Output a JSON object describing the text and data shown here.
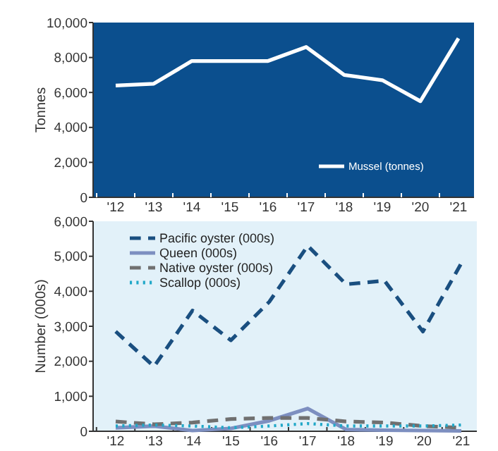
{
  "chart_data": [
    {
      "type": "line",
      "ylabel": "Tonnes",
      "categories": [
        "'12",
        "'13",
        "'14",
        "'15",
        "'16",
        "'17",
        "'18",
        "'19",
        "'20",
        "'21"
      ],
      "series": [
        {
          "name": "Mussel (tonnes)",
          "color": "#ffffff",
          "values": [
            6400,
            6500,
            7800,
            7800,
            7800,
            8600,
            7000,
            6700,
            5500,
            9100
          ]
        }
      ],
      "ylim": [
        0,
        10000
      ],
      "yticks": [
        {
          "value": 0,
          "label": "0"
        },
        {
          "value": 2000,
          "label": "2,000"
        },
        {
          "value": 4000,
          "label": "4,000"
        },
        {
          "value": 6000,
          "label": "6,000"
        },
        {
          "value": 8000,
          "label": "8,000"
        },
        {
          "value": 10000,
          "label": "10,000"
        }
      ],
      "legend": "bottom right",
      "line_style": "solid"
    },
    {
      "type": "line",
      "ylabel": "Number (000s)",
      "categories": [
        "'12",
        "'13",
        "'14",
        "'15",
        "'16",
        "'17",
        "'18",
        "'19",
        "'20",
        "'21"
      ],
      "series": [
        {
          "name": "Pacific oyster (000s)",
          "color": "#1a4f80",
          "line_style": "dashed",
          "values": [
            2850,
            1850,
            3450,
            2600,
            3700,
            5300,
            4200,
            4300,
            2850,
            4800
          ]
        },
        {
          "name": "Queen (000s)",
          "color": "#7d8fc0",
          "line_style": "solid",
          "values": [
            100,
            150,
            20,
            80,
            300,
            650,
            50,
            30,
            20,
            10
          ]
        },
        {
          "name": "Native oyster (000s)",
          "color": "#707070",
          "line_style": "dashed",
          "values": [
            280,
            200,
            250,
            350,
            380,
            380,
            280,
            250,
            150,
            100
          ]
        },
        {
          "name": "Scallop (000s)",
          "color": "#20a8c8",
          "line_style": "dotted",
          "values": [
            150,
            180,
            150,
            100,
            150,
            220,
            150,
            150,
            150,
            180
          ]
        }
      ],
      "ylim": [
        0,
        6000
      ],
      "yticks": [
        {
          "value": 0,
          "label": "0"
        },
        {
          "value": 1000,
          "label": "1,000"
        },
        {
          "value": 2000,
          "label": "2,000"
        },
        {
          "value": 3000,
          "label": "3,000"
        },
        {
          "value": 4000,
          "label": "4,000"
        },
        {
          "value": 5000,
          "label": "5,000"
        },
        {
          "value": 6000,
          "label": "6,000"
        }
      ],
      "legend": "top left"
    }
  ]
}
